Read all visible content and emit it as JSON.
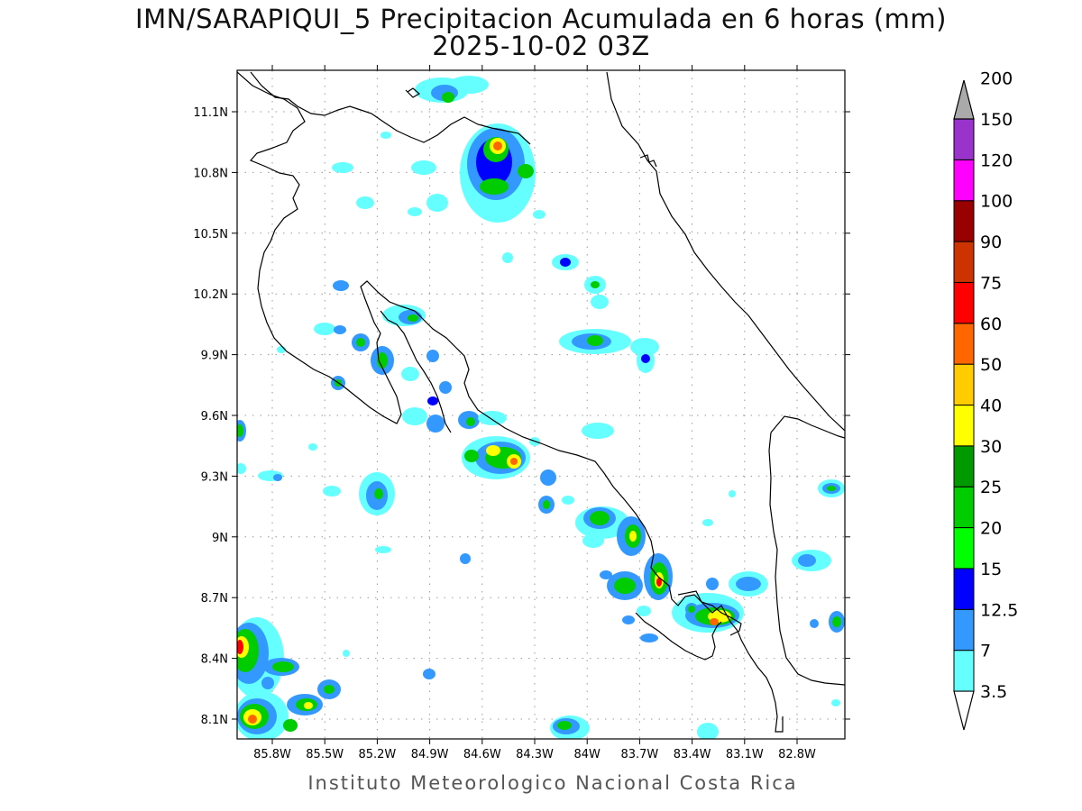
{
  "title_line1": "IMN/SARAPIQUI_5 Precipitacion Acumulada en 6 horas (mm)",
  "title_line2": "2025-10-02 03Z",
  "credit": "Instituto Meteorologico Nacional Costa Rica",
  "map": {
    "lat_ticks": [
      "11.1N",
      "10.8N",
      "10.5N",
      "10.2N",
      "9.9N",
      "9.6N",
      "9.3N",
      "9N",
      "8.7N",
      "8.4N",
      "8.1N"
    ],
    "lon_ticks": [
      "85.8W",
      "85.5W",
      "85.2W",
      "84.9W",
      "84.6W",
      "84.3W",
      "84W",
      "83.7W",
      "83.4W",
      "83.1W",
      "82.8W"
    ],
    "grid": "dotted"
  },
  "colorbar": {
    "labels": [
      "3.5",
      "7",
      "12.5",
      "15",
      "20",
      "25",
      "30",
      "40",
      "50",
      "60",
      "75",
      "90",
      "100",
      "120",
      "150",
      "200"
    ],
    "colors": [
      "#66ffff",
      "#3399ff",
      "#0000ff",
      "#00ff00",
      "#00cc00",
      "#009900",
      "#ffff00",
      "#ffcc00",
      "#ff6600",
      "#ff0000",
      "#cc3300",
      "#990000",
      "#ff00ff",
      "#9933cc",
      "#f4f4f4",
      "#aaaaaa"
    ]
  }
}
